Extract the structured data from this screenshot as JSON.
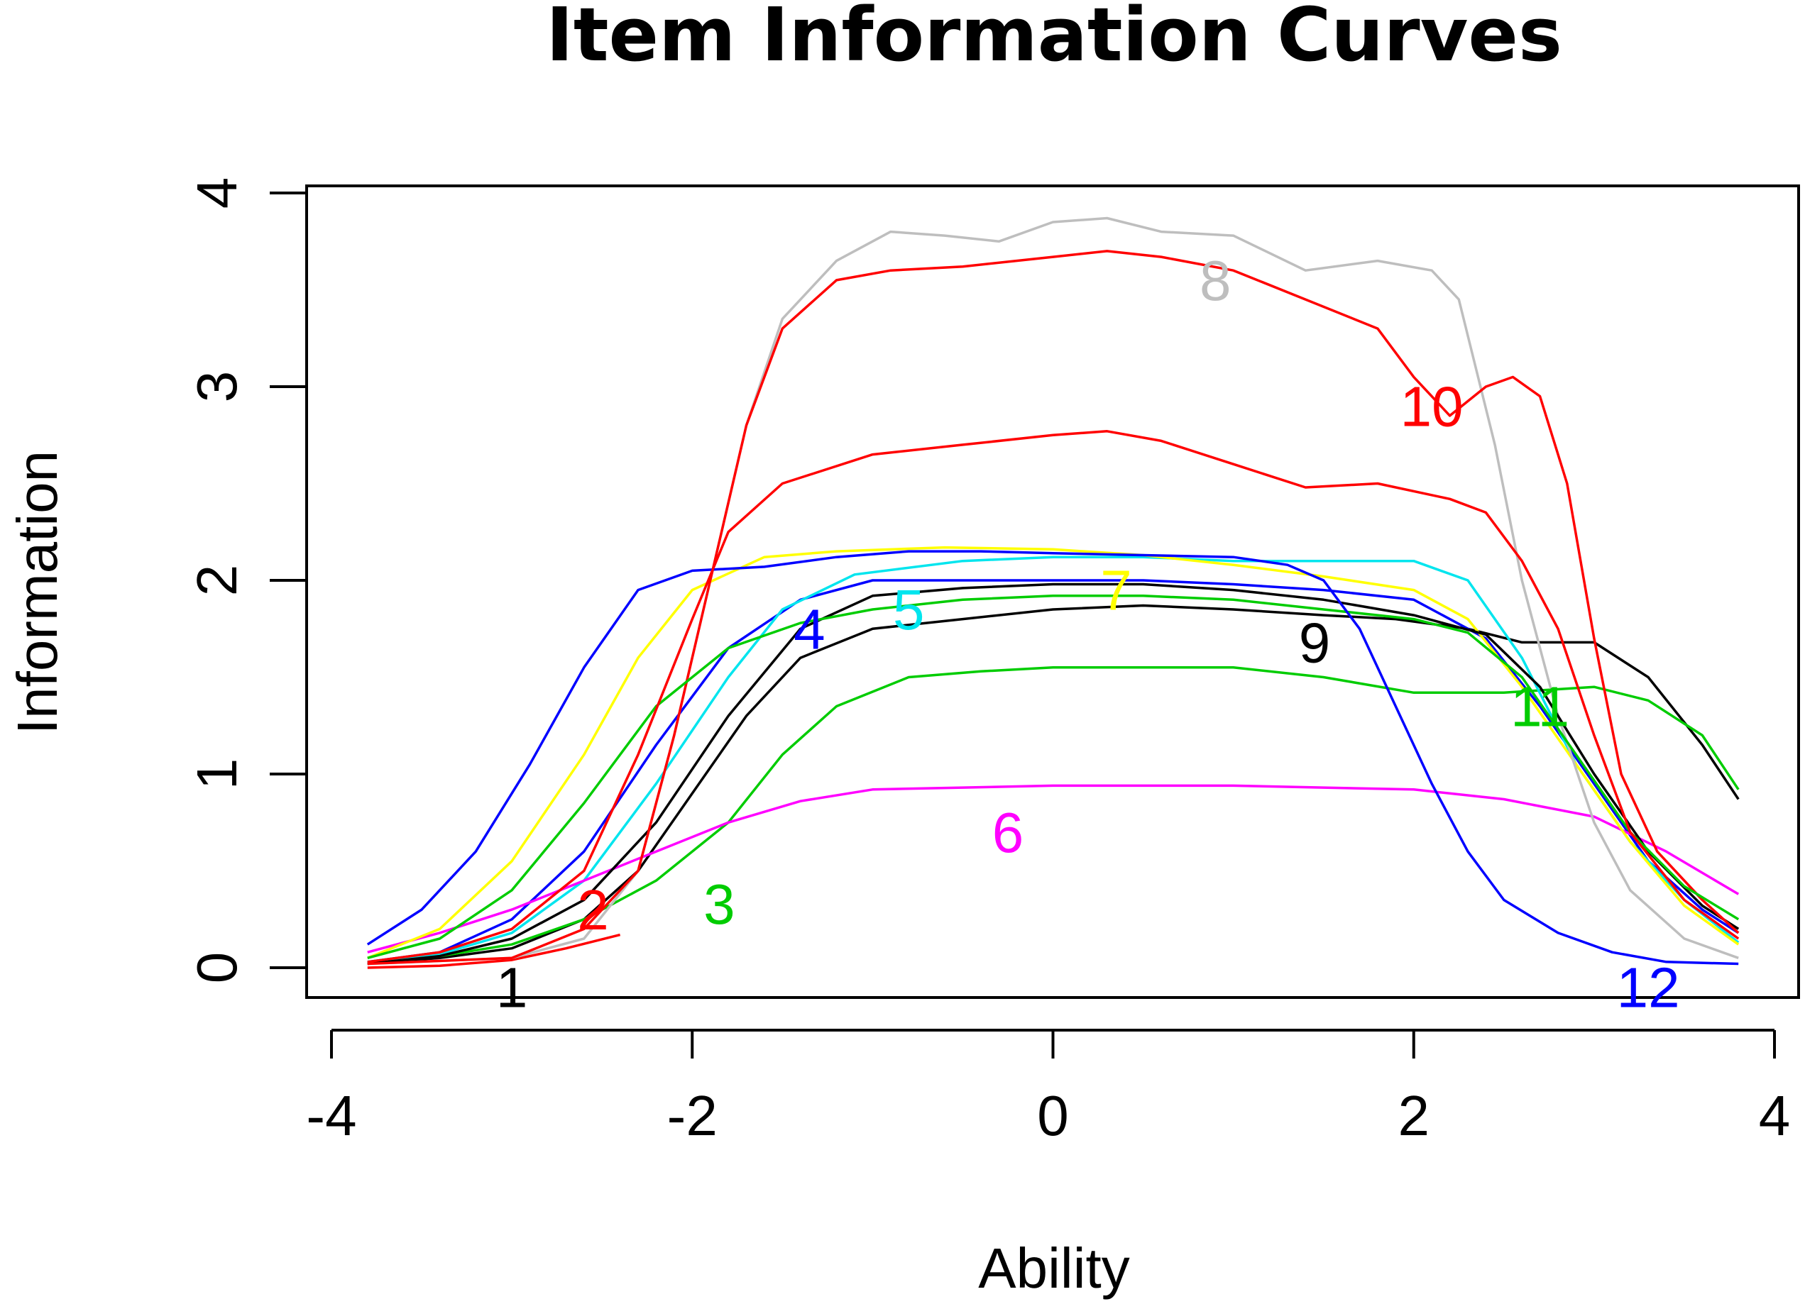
{
  "chart_data": {
    "type": "line",
    "title": "Item Information Curves",
    "xlabel": "Ability",
    "ylabel": "Information",
    "xlim": [
      -4,
      4
    ],
    "ylim": [
      0,
      4
    ],
    "xticks": [
      "-4",
      "-2",
      "0",
      "2",
      "4"
    ],
    "yticks": [
      "0",
      "1",
      "2",
      "3",
      "4"
    ],
    "grid": false,
    "legend": "none",
    "series": [
      {
        "name": "1",
        "color": "#000000",
        "label_at": [
          -3.0,
          -0.1
        ],
        "points": [
          [
            -3.8,
            0.02
          ],
          [
            -3.4,
            0.05
          ],
          [
            -3.0,
            0.1
          ],
          [
            -2.6,
            0.25
          ],
          [
            -2.3,
            0.5
          ],
          [
            -2.0,
            0.9
          ],
          [
            -1.7,
            1.3
          ],
          [
            -1.4,
            1.6
          ],
          [
            -1.0,
            1.75
          ],
          [
            -0.5,
            1.8
          ],
          [
            0,
            1.85
          ],
          [
            0.5,
            1.87
          ],
          [
            1.0,
            1.85
          ],
          [
            1.5,
            1.82
          ],
          [
            1.9,
            1.8
          ],
          [
            2.3,
            1.75
          ],
          [
            2.6,
            1.68
          ],
          [
            3.0,
            1.68
          ],
          [
            3.3,
            1.5
          ],
          [
            3.6,
            1.15
          ],
          [
            3.8,
            0.87
          ]
        ]
      },
      {
        "name": "2",
        "color": "#ff0000",
        "label_at": [
          -2.55,
          0.3
        ],
        "points": [
          [
            -3.8,
            0.0
          ],
          [
            -3.4,
            0.01
          ],
          [
            -3.0,
            0.04
          ],
          [
            -2.7,
            0.1
          ],
          [
            -2.4,
            0.17
          ]
        ]
      },
      {
        "name": "3",
        "color": "#00cc00",
        "label_at": [
          -1.85,
          0.33
        ],
        "points": [
          [
            -3.8,
            0.03
          ],
          [
            -3.4,
            0.06
          ],
          [
            -3.0,
            0.12
          ],
          [
            -2.6,
            0.25
          ],
          [
            -2.2,
            0.45
          ],
          [
            -1.8,
            0.75
          ],
          [
            -1.5,
            1.1
          ],
          [
            -1.2,
            1.35
          ],
          [
            -0.8,
            1.5
          ],
          [
            -0.4,
            1.53
          ],
          [
            0,
            1.55
          ],
          [
            0.5,
            1.55
          ],
          [
            1.0,
            1.55
          ],
          [
            1.5,
            1.5
          ],
          [
            2.0,
            1.42
          ],
          [
            2.5,
            1.42
          ],
          [
            3.0,
            1.45
          ],
          [
            3.3,
            1.38
          ],
          [
            3.6,
            1.2
          ],
          [
            3.8,
            0.92
          ]
        ]
      },
      {
        "name": "4",
        "color": "#0000ff",
        "label_at": [
          -1.35,
          1.75
        ],
        "points": [
          [
            -3.8,
            0.03
          ],
          [
            -3.4,
            0.08
          ],
          [
            -3.0,
            0.25
          ],
          [
            -2.6,
            0.6
          ],
          [
            -2.2,
            1.15
          ],
          [
            -1.8,
            1.65
          ],
          [
            -1.4,
            1.9
          ],
          [
            -1.0,
            2.0
          ],
          [
            -0.5,
            2.0
          ],
          [
            0,
            2.0
          ],
          [
            0.5,
            2.0
          ],
          [
            1.0,
            1.98
          ],
          [
            1.5,
            1.95
          ],
          [
            2.0,
            1.9
          ],
          [
            2.4,
            1.7
          ],
          [
            2.7,
            1.35
          ],
          [
            3.0,
            0.95
          ],
          [
            3.3,
            0.55
          ],
          [
            3.6,
            0.3
          ],
          [
            3.8,
            0.18
          ]
        ]
      },
      {
        "name": "5",
        "color": "#00e5ee",
        "label_at": [
          -0.8,
          1.85
        ],
        "points": [
          [
            -3.8,
            0.03
          ],
          [
            -3.4,
            0.07
          ],
          [
            -3.0,
            0.18
          ],
          [
            -2.6,
            0.45
          ],
          [
            -2.2,
            0.95
          ],
          [
            -1.8,
            1.5
          ],
          [
            -1.5,
            1.85
          ],
          [
            -1.1,
            2.03
          ],
          [
            -0.5,
            2.1
          ],
          [
            0,
            2.12
          ],
          [
            0.5,
            2.12
          ],
          [
            1.0,
            2.1
          ],
          [
            1.5,
            2.1
          ],
          [
            2.0,
            2.1
          ],
          [
            2.3,
            2.0
          ],
          [
            2.6,
            1.6
          ],
          [
            2.9,
            1.05
          ],
          [
            3.2,
            0.65
          ],
          [
            3.5,
            0.35
          ],
          [
            3.8,
            0.13
          ]
        ]
      },
      {
        "name": "6",
        "color": "#ff00ff",
        "label_at": [
          -0.25,
          0.7
        ],
        "points": [
          [
            -3.8,
            0.08
          ],
          [
            -3.4,
            0.18
          ],
          [
            -3.0,
            0.3
          ],
          [
            -2.6,
            0.45
          ],
          [
            -2.2,
            0.6
          ],
          [
            -1.8,
            0.75
          ],
          [
            -1.4,
            0.86
          ],
          [
            -1.0,
            0.92
          ],
          [
            -0.5,
            0.93
          ],
          [
            0,
            0.94
          ],
          [
            0.5,
            0.94
          ],
          [
            1.0,
            0.94
          ],
          [
            1.5,
            0.93
          ],
          [
            2.0,
            0.92
          ],
          [
            2.5,
            0.87
          ],
          [
            3.0,
            0.78
          ],
          [
            3.4,
            0.6
          ],
          [
            3.8,
            0.38
          ]
        ]
      },
      {
        "name": "7",
        "color": "#ffff00",
        "label_at": [
          0.35,
          1.95
        ],
        "points": [
          [
            -3.8,
            0.05
          ],
          [
            -3.4,
            0.2
          ],
          [
            -3.0,
            0.55
          ],
          [
            -2.6,
            1.1
          ],
          [
            -2.3,
            1.6
          ],
          [
            -2.0,
            1.95
          ],
          [
            -1.6,
            2.12
          ],
          [
            -1.2,
            2.15
          ],
          [
            -0.6,
            2.17
          ],
          [
            0,
            2.16
          ],
          [
            0.5,
            2.13
          ],
          [
            1.0,
            2.08
          ],
          [
            1.5,
            2.02
          ],
          [
            2.0,
            1.95
          ],
          [
            2.3,
            1.8
          ],
          [
            2.6,
            1.45
          ],
          [
            2.9,
            1.05
          ],
          [
            3.2,
            0.65
          ],
          [
            3.5,
            0.32
          ],
          [
            3.8,
            0.12
          ]
        ]
      },
      {
        "name": "8",
        "color": "#bebebe",
        "label_at": [
          0.9,
          3.55
        ],
        "points": [
          [
            -3.8,
            0.02
          ],
          [
            -3.0,
            0.05
          ],
          [
            -2.6,
            0.15
          ],
          [
            -2.3,
            0.5
          ],
          [
            -2.1,
            1.2
          ],
          [
            -1.9,
            2.0
          ],
          [
            -1.7,
            2.8
          ],
          [
            -1.5,
            3.35
          ],
          [
            -1.2,
            3.65
          ],
          [
            -0.9,
            3.8
          ],
          [
            -0.6,
            3.78
          ],
          [
            -0.3,
            3.75
          ],
          [
            0,
            3.85
          ],
          [
            0.3,
            3.87
          ],
          [
            0.6,
            3.8
          ],
          [
            1.0,
            3.78
          ],
          [
            1.4,
            3.6
          ],
          [
            1.8,
            3.65
          ],
          [
            2.1,
            3.6
          ],
          [
            2.25,
            3.45
          ],
          [
            2.45,
            2.7
          ],
          [
            2.6,
            2.0
          ],
          [
            2.8,
            1.3
          ],
          [
            3.0,
            0.75
          ],
          [
            3.2,
            0.4
          ],
          [
            3.5,
            0.15
          ],
          [
            3.8,
            0.05
          ]
        ]
      },
      {
        "name": "9",
        "color": "#000000",
        "label_at": [
          1.45,
          1.68
        ],
        "points": [
          [
            -3.8,
            0.02
          ],
          [
            -3.4,
            0.06
          ],
          [
            -3.0,
            0.15
          ],
          [
            -2.6,
            0.35
          ],
          [
            -2.2,
            0.75
          ],
          [
            -1.8,
            1.3
          ],
          [
            -1.4,
            1.75
          ],
          [
            -1.0,
            1.92
          ],
          [
            -0.5,
            1.96
          ],
          [
            0,
            1.98
          ],
          [
            0.5,
            1.98
          ],
          [
            1.0,
            1.95
          ],
          [
            1.5,
            1.9
          ],
          [
            2.0,
            1.82
          ],
          [
            2.4,
            1.72
          ],
          [
            2.7,
            1.45
          ],
          [
            3.0,
            1.0
          ],
          [
            3.3,
            0.6
          ],
          [
            3.6,
            0.32
          ],
          [
            3.8,
            0.2
          ]
        ]
      },
      {
        "name": "10",
        "color": "#ff0000",
        "label_at": [
          2.1,
          2.9
        ],
        "points": [
          [
            -3.8,
            0.02
          ],
          [
            -3.0,
            0.05
          ],
          [
            -2.6,
            0.2
          ],
          [
            -2.3,
            0.5
          ],
          [
            -2.1,
            1.2
          ],
          [
            -1.9,
            2.0
          ],
          [
            -1.7,
            2.8
          ],
          [
            -1.5,
            3.3
          ],
          [
            -1.2,
            3.55
          ],
          [
            -0.9,
            3.6
          ],
          [
            -0.5,
            3.62
          ],
          [
            0,
            3.67
          ],
          [
            0.3,
            3.7
          ],
          [
            0.6,
            3.67
          ],
          [
            1.0,
            3.6
          ],
          [
            1.4,
            3.45
          ],
          [
            1.8,
            3.3
          ],
          [
            2.0,
            3.05
          ],
          [
            2.2,
            2.85
          ],
          [
            2.4,
            3.0
          ],
          [
            2.55,
            3.05
          ],
          [
            2.7,
            2.95
          ],
          [
            2.85,
            2.5
          ],
          [
            3.0,
            1.7
          ],
          [
            3.15,
            1.0
          ],
          [
            3.35,
            0.6
          ],
          [
            3.6,
            0.35
          ],
          [
            3.8,
            0.18
          ]
        ]
      },
      {
        "name": "11",
        "color": "#00cc00",
        "label_at": [
          2.7,
          1.35
        ],
        "points": [
          [
            -3.8,
            0.05
          ],
          [
            -3.4,
            0.15
          ],
          [
            -3.0,
            0.4
          ],
          [
            -2.6,
            0.85
          ],
          [
            -2.2,
            1.35
          ],
          [
            -1.8,
            1.65
          ],
          [
            -1.4,
            1.78
          ],
          [
            -1.0,
            1.85
          ],
          [
            -0.5,
            1.9
          ],
          [
            0,
            1.92
          ],
          [
            0.5,
            1.92
          ],
          [
            1.0,
            1.9
          ],
          [
            1.5,
            1.85
          ],
          [
            2.0,
            1.8
          ],
          [
            2.3,
            1.73
          ],
          [
            2.6,
            1.5
          ],
          [
            2.9,
            1.1
          ],
          [
            3.2,
            0.7
          ],
          [
            3.5,
            0.42
          ],
          [
            3.8,
            0.25
          ]
        ]
      },
      {
        "name": "12",
        "color": "#0000ff",
        "label_at": [
          3.3,
          -0.1
        ],
        "points": [
          [
            -3.8,
            0.12
          ],
          [
            -3.5,
            0.3
          ],
          [
            -3.2,
            0.6
          ],
          [
            -2.9,
            1.05
          ],
          [
            -2.6,
            1.55
          ],
          [
            -2.3,
            1.95
          ],
          [
            -2.0,
            2.05
          ],
          [
            -1.6,
            2.07
          ],
          [
            -1.2,
            2.12
          ],
          [
            -0.8,
            2.15
          ],
          [
            -0.4,
            2.15
          ],
          [
            0,
            2.14
          ],
          [
            0.5,
            2.13
          ],
          [
            1.0,
            2.12
          ],
          [
            1.3,
            2.08
          ],
          [
            1.5,
            2.0
          ],
          [
            1.7,
            1.75
          ],
          [
            1.9,
            1.35
          ],
          [
            2.1,
            0.95
          ],
          [
            2.3,
            0.6
          ],
          [
            2.5,
            0.35
          ],
          [
            2.8,
            0.18
          ],
          [
            3.1,
            0.08
          ],
          [
            3.4,
            0.03
          ],
          [
            3.8,
            0.02
          ]
        ]
      },
      {
        "name": "",
        "color": "#ff0000",
        "label_at": null,
        "points": [
          [
            -3.8,
            0.03
          ],
          [
            -3.4,
            0.08
          ],
          [
            -3.0,
            0.2
          ],
          [
            -2.6,
            0.5
          ],
          [
            -2.3,
            1.1
          ],
          [
            -2.0,
            1.8
          ],
          [
            -1.8,
            2.25
          ],
          [
            -1.5,
            2.5
          ],
          [
            -1.0,
            2.65
          ],
          [
            -0.5,
            2.7
          ],
          [
            0,
            2.75
          ],
          [
            0.3,
            2.77
          ],
          [
            0.6,
            2.72
          ],
          [
            1.0,
            2.6
          ],
          [
            1.4,
            2.48
          ],
          [
            1.8,
            2.5
          ],
          [
            2.2,
            2.42
          ],
          [
            2.4,
            2.35
          ],
          [
            2.6,
            2.1
          ],
          [
            2.8,
            1.75
          ],
          [
            3.0,
            1.2
          ],
          [
            3.2,
            0.7
          ],
          [
            3.5,
            0.35
          ],
          [
            3.8,
            0.15
          ]
        ]
      }
    ]
  }
}
